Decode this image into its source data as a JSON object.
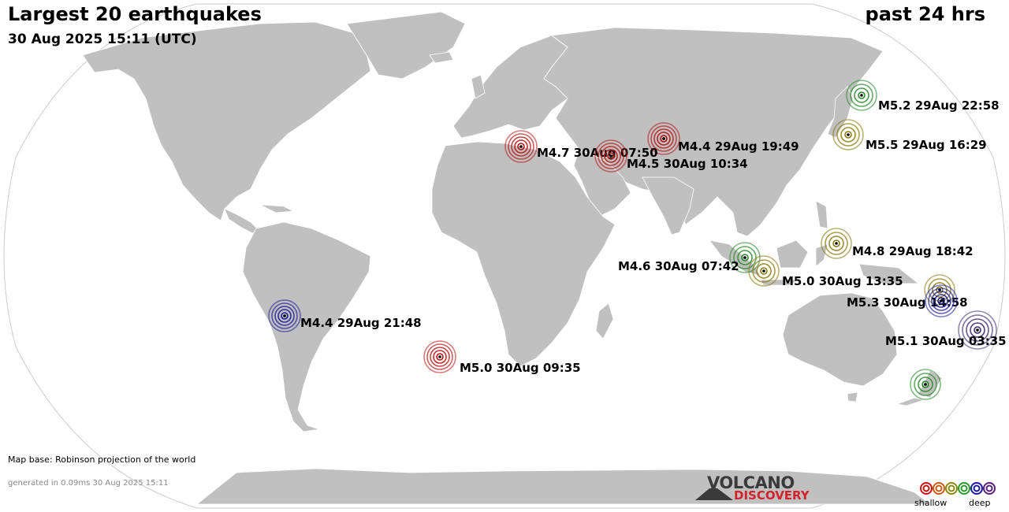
{
  "header": {
    "title": "Largest 20 earthquakes",
    "subtitle": "30 Aug 2025 15:11 (UTC)",
    "period": "past 24 hrs"
  },
  "footer": {
    "map_base": "Map base: Robinson projection of the world",
    "generated": "generated in 0.09ms 30 Aug 2025 15:11"
  },
  "logo": {
    "line1": "VOLCANO",
    "line2": "DISCOVERY"
  },
  "legend": {
    "shallow_label": "shallow",
    "deep_label": "deep",
    "colors": [
      "#cc1111",
      "#cc5a10",
      "#8a8a10",
      "#2a9a2a",
      "#1a1aa0",
      "#55207a"
    ]
  },
  "colors": {
    "land": "#c0c0c0",
    "ocean": "#ffffff",
    "border": "#ffffff",
    "red": "#bb1111",
    "olive": "#8a7a10",
    "green": "#2a8a2a",
    "blue": "#1a1a9a",
    "purple": "#3c2a70"
  },
  "quakes": [
    {
      "label": "M5.2 29Aug 22:58",
      "depth": "green"
    },
    {
      "label": "M5.5 29Aug 16:29",
      "depth": "olive"
    },
    {
      "label": "M4.4 29Aug 19:49",
      "depth": "red"
    },
    {
      "label": "M4.7 30Aug 07:50",
      "depth": "red"
    },
    {
      "label": "M4.5 30Aug 10:34",
      "depth": "red"
    },
    {
      "label": "M4.8 29Aug 18:42",
      "depth": "olive"
    },
    {
      "label": "M4.6 30Aug 07:42",
      "depth": "green"
    },
    {
      "label": "M5.0 30Aug 13:35",
      "depth": "olive"
    },
    {
      "label": "M5.3 30Aug 14:58",
      "depth": "olive"
    },
    {
      "label": "M5.1 30Aug 03:35",
      "depth": "purple"
    },
    {
      "label": "M4.4 29Aug 21:48",
      "depth": "blue"
    },
    {
      "label": "M5.0 30Aug 09:35",
      "depth": "red"
    },
    {
      "label": "",
      "depth": "green"
    },
    {
      "label": "",
      "depth": "blue"
    }
  ]
}
